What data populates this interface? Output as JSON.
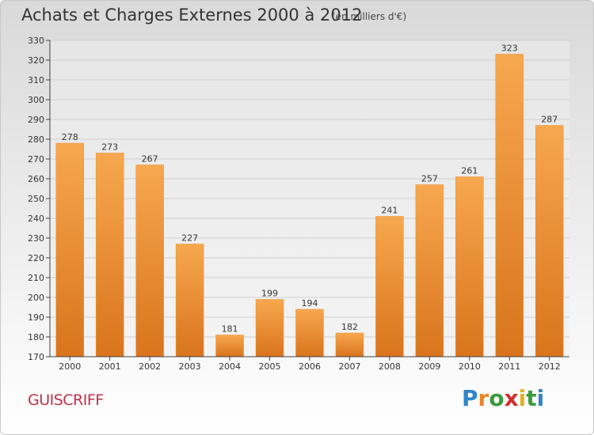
{
  "header": {
    "title": "Achats et Charges Externes 2000 à 2012",
    "subtitle": "(en milliers d'€)"
  },
  "footer": {
    "commune": "GUISCRIFF",
    "logo_letters": [
      "P",
      "r",
      "o",
      "x",
      "i",
      "t",
      "i"
    ],
    "logo_colors": [
      "#2e86c8",
      "#e8862a",
      "#3a9a3a",
      "#cf2f2f",
      "#e8b01e",
      "#3a9a3a",
      "#2e86c8"
    ]
  },
  "colors": {
    "bar_light": "#f7a84f",
    "bar_dark": "#d9741c",
    "grid": "#cfcfcf",
    "axis": "#444444",
    "text": "#333333"
  },
  "chart_data": {
    "type": "bar",
    "title": "Achats et Charges Externes 2000 à 2012",
    "subtitle": "(en milliers d'€)",
    "categories": [
      "2000",
      "2001",
      "2002",
      "2003",
      "2004",
      "2005",
      "2006",
      "2007",
      "2008",
      "2009",
      "2010",
      "2011",
      "2012"
    ],
    "values": [
      278,
      273,
      267,
      227,
      181,
      199,
      194,
      182,
      241,
      257,
      261,
      323,
      287
    ],
    "ylim": [
      170,
      330
    ],
    "yticks": [
      170,
      180,
      190,
      200,
      210,
      220,
      230,
      240,
      250,
      260,
      270,
      280,
      290,
      300,
      310,
      320,
      330
    ],
    "grid": true,
    "data_labels": true
  }
}
